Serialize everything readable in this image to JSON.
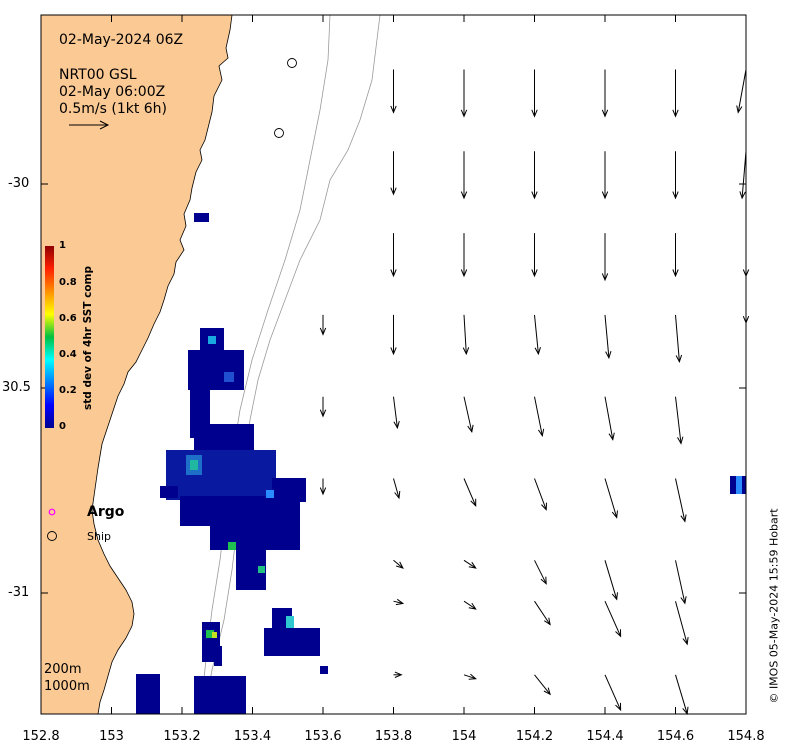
{
  "map": {
    "title": "02-May-2024 06Z",
    "product": "NRT00 GSL",
    "valid_time": "02-May 06:00Z",
    "scale_label": "0.5m/s (1kt 6h)",
    "lon_ticks": [
      "152.8",
      "153",
      "153.2",
      "153.4",
      "153.6",
      "153.8",
      "154",
      "154.2",
      "154.4",
      "154.6",
      "154.8"
    ],
    "lat_ticks": [
      "-30",
      "30.5",
      "-31"
    ],
    "colorbar": {
      "label": "std dev of 4hr SST comp",
      "ticks": [
        "1",
        "0.8",
        "0.6",
        "0.4",
        "0.2",
        "0"
      ]
    },
    "legend": {
      "argo": "Argo",
      "ship": "Ship"
    },
    "isobaths": [
      "200m",
      "1000m"
    ],
    "credit": "© IMOS 05-May-2024 15:59 Hobart",
    "colors": {
      "land": "#fbc994",
      "coast": "#000000",
      "isobath": "#9a9a9a",
      "sst_low": "#00008f",
      "argo_marker": "#ff00ff"
    },
    "current_vectors": [
      {
        "lon": 153.8,
        "lat": -29.72,
        "u": 0.0,
        "v": -0.55
      },
      {
        "lon": 154.0,
        "lat": -29.72,
        "u": 0.0,
        "v": -0.6
      },
      {
        "lon": 154.2,
        "lat": -29.72,
        "u": 0.0,
        "v": -0.6
      },
      {
        "lon": 154.4,
        "lat": -29.72,
        "u": 0.0,
        "v": -0.6
      },
      {
        "lon": 154.6,
        "lat": -29.72,
        "u": 0.0,
        "v": -0.6
      },
      {
        "lon": 154.8,
        "lat": -29.72,
        "u": -0.1,
        "v": -0.55
      },
      {
        "lon": 153.8,
        "lat": -29.92,
        "u": 0.0,
        "v": -0.55
      },
      {
        "lon": 154.0,
        "lat": -29.92,
        "u": 0.0,
        "v": -0.6
      },
      {
        "lon": 154.2,
        "lat": -29.92,
        "u": 0.0,
        "v": -0.6
      },
      {
        "lon": 154.4,
        "lat": -29.92,
        "u": 0.0,
        "v": -0.6
      },
      {
        "lon": 154.6,
        "lat": -29.92,
        "u": 0.0,
        "v": -0.6
      },
      {
        "lon": 154.8,
        "lat": -29.92,
        "u": -0.05,
        "v": -0.6
      },
      {
        "lon": 153.8,
        "lat": -30.12,
        "u": 0.0,
        "v": -0.55
      },
      {
        "lon": 154.0,
        "lat": -30.12,
        "u": 0.0,
        "v": -0.55
      },
      {
        "lon": 154.2,
        "lat": -30.12,
        "u": 0.0,
        "v": -0.55
      },
      {
        "lon": 154.4,
        "lat": -30.12,
        "u": 0.0,
        "v": -0.6
      },
      {
        "lon": 154.6,
        "lat": -30.12,
        "u": 0.0,
        "v": -0.55
      },
      {
        "lon": 154.8,
        "lat": -30.12,
        "u": 0.0,
        "v": -0.55
      },
      {
        "lon": 153.6,
        "lat": -30.32,
        "u": 0.0,
        "v": -0.25
      },
      {
        "lon": 153.8,
        "lat": -30.32,
        "u": 0.0,
        "v": -0.5
      },
      {
        "lon": 154.0,
        "lat": -30.32,
        "u": 0.03,
        "v": -0.5
      },
      {
        "lon": 154.2,
        "lat": -30.32,
        "u": 0.05,
        "v": -0.5
      },
      {
        "lon": 154.4,
        "lat": -30.32,
        "u": 0.05,
        "v": -0.55
      },
      {
        "lon": 154.6,
        "lat": -30.32,
        "u": 0.05,
        "v": -0.6
      },
      {
        "lon": 154.8,
        "lat": -30.32,
        "u": 0.0,
        "v": -0.1
      },
      {
        "lon": 153.6,
        "lat": -30.52,
        "u": 0.0,
        "v": -0.25
      },
      {
        "lon": 153.8,
        "lat": -30.52,
        "u": 0.05,
        "v": -0.4
      },
      {
        "lon": 154.0,
        "lat": -30.52,
        "u": 0.1,
        "v": -0.45
      },
      {
        "lon": 154.2,
        "lat": -30.52,
        "u": 0.1,
        "v": -0.5
      },
      {
        "lon": 154.4,
        "lat": -30.52,
        "u": 0.1,
        "v": -0.55
      },
      {
        "lon": 154.6,
        "lat": -30.52,
        "u": 0.07,
        "v": -0.6
      },
      {
        "lon": 153.6,
        "lat": -30.72,
        "u": 0.0,
        "v": -0.2
      },
      {
        "lon": 153.8,
        "lat": -30.72,
        "u": 0.07,
        "v": -0.25
      },
      {
        "lon": 154.0,
        "lat": -30.72,
        "u": 0.15,
        "v": -0.35
      },
      {
        "lon": 154.2,
        "lat": -30.72,
        "u": 0.15,
        "v": -0.4
      },
      {
        "lon": 154.4,
        "lat": -30.72,
        "u": 0.15,
        "v": -0.5
      },
      {
        "lon": 154.6,
        "lat": -30.72,
        "u": 0.12,
        "v": -0.55
      },
      {
        "lon": 153.8,
        "lat": -30.92,
        "u": 0.12,
        "v": -0.1
      },
      {
        "lon": 154.0,
        "lat": -30.92,
        "u": 0.15,
        "v": -0.1
      },
      {
        "lon": 154.2,
        "lat": -30.92,
        "u": 0.15,
        "v": -0.3
      },
      {
        "lon": 154.4,
        "lat": -30.92,
        "u": 0.15,
        "v": -0.5
      },
      {
        "lon": 154.6,
        "lat": -30.92,
        "u": 0.12,
        "v": -0.55
      },
      {
        "lon": 153.8,
        "lat": -31.02,
        "u": 0.12,
        "v": -0.03
      },
      {
        "lon": 154.0,
        "lat": -31.02,
        "u": 0.15,
        "v": -0.1
      },
      {
        "lon": 154.2,
        "lat": -31.02,
        "u": 0.2,
        "v": -0.3
      },
      {
        "lon": 154.4,
        "lat": -31.02,
        "u": 0.2,
        "v": -0.45
      },
      {
        "lon": 154.6,
        "lat": -31.02,
        "u": 0.15,
        "v": -0.55
      },
      {
        "lon": 153.8,
        "lat": -31.2,
        "u": 0.1,
        "v": 0.0
      },
      {
        "lon": 154.0,
        "lat": -31.2,
        "u": 0.15,
        "v": -0.05
      },
      {
        "lon": 154.2,
        "lat": -31.2,
        "u": 0.2,
        "v": -0.25
      },
      {
        "lon": 154.4,
        "lat": -31.2,
        "u": 0.2,
        "v": -0.45
      },
      {
        "lon": 154.6,
        "lat": -31.2,
        "u": 0.15,
        "v": -0.5
      }
    ]
  }
}
